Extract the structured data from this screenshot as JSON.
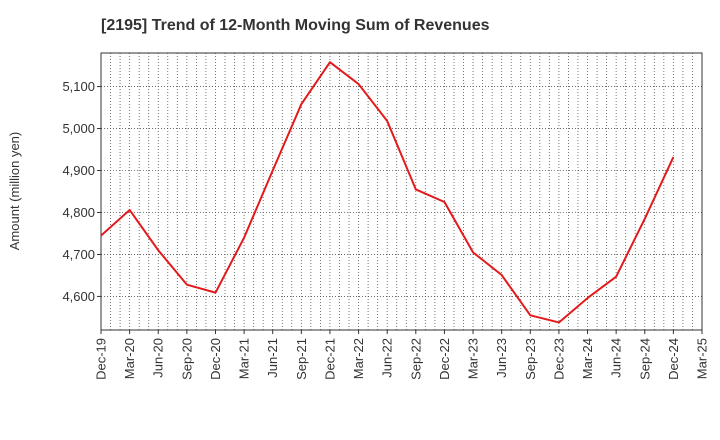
{
  "chart_data": {
    "type": "line",
    "title": "[2195]  Trend of 12-Month Moving Sum of Revenues",
    "xlabel": "",
    "ylabel": "Amount (million yen)",
    "ylim": [
      4520,
      5180
    ],
    "yticks": [
      4600,
      4700,
      4800,
      4900,
      5000,
      5100
    ],
    "ytick_labels": [
      "4,600",
      "4,700",
      "4,800",
      "4,900",
      "5,000",
      "5,100"
    ],
    "xticks": [
      "Dec-19",
      "Mar-20",
      "Jun-20",
      "Sep-20",
      "Dec-20",
      "Mar-21",
      "Jun-21",
      "Sep-21",
      "Dec-21",
      "Mar-22",
      "Jun-22",
      "Sep-22",
      "Dec-22",
      "Mar-23",
      "Jun-23",
      "Sep-23",
      "Dec-23",
      "Mar-24",
      "Jun-24",
      "Sep-24",
      "Dec-24",
      "Mar-25"
    ],
    "grid": true,
    "series": [
      {
        "color": "#e31a1c",
        "x": [
          "Dec-19",
          "Mar-20",
          "Jun-20",
          "Sep-20",
          "Dec-20",
          "Mar-21",
          "Jun-21",
          "Sep-21",
          "Dec-21",
          "Mar-22",
          "Jun-22",
          "Sep-22",
          "Dec-22",
          "Mar-23",
          "Jun-23",
          "Sep-23",
          "Dec-23",
          "Mar-24",
          "Jun-24",
          "Sep-24",
          "Dec-24"
        ],
        "values": [
          4745,
          4806,
          4710,
          4628,
          4609,
          4740,
          4900,
          5058,
          5158,
          5106,
          5018,
          4855,
          4825,
          4705,
          4651,
          4555,
          4538,
          4596,
          4647,
          4785,
          4932
        ]
      }
    ]
  }
}
